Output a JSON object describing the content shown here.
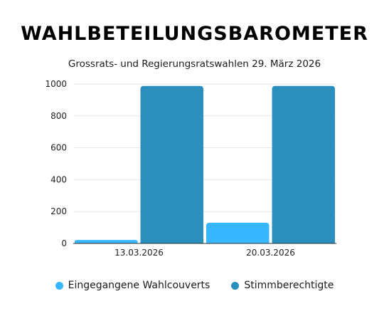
{
  "colors": {
    "series_0": "#38b6ff",
    "series_1": "#2b8fbd",
    "grid": "#e6e6e6",
    "axis": "#333333"
  },
  "chart_data": {
    "type": "bar",
    "title": "WAHLBETEILUNGSBAROMETER",
    "subtitle": "Grossrats- und Regierungsratswahlen 29. März 2026",
    "categories": [
      "13.03.2026",
      "20.03.2026"
    ],
    "series": [
      {
        "name": "Eingegangene Wahlcouverts",
        "values": [
          22,
          130
        ]
      },
      {
        "name": "Stimmberechtigte",
        "values": [
          988,
          988
        ]
      }
    ],
    "ylim": [
      0,
      1000
    ],
    "yticks": [
      0,
      200,
      400,
      600,
      800,
      1000
    ],
    "grid": true,
    "legend_position": "bottom"
  }
}
